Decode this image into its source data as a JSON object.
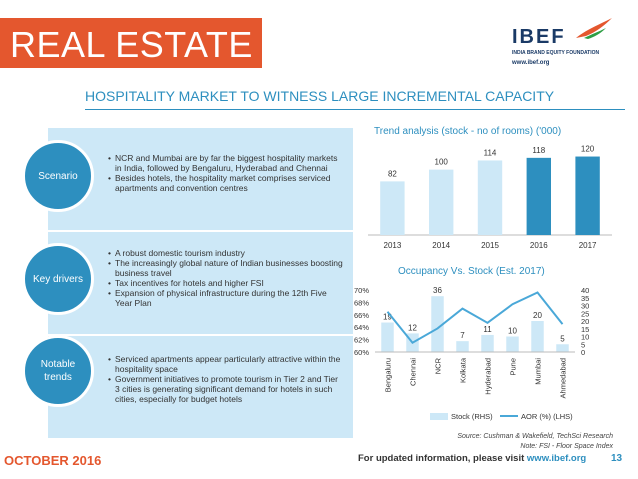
{
  "page": {
    "section_title": "REAL ESTATE",
    "headline": "HOSPITALITY MARKET TO WITNESS LARGE INCREMENTAL CAPACITY"
  },
  "logo": {
    "name": "IBEF",
    "subtitle": "INDIA BRAND EQUITY FOUNDATION",
    "url": "www.ibef.org"
  },
  "panels": [
    {
      "label": "Scenario",
      "bullets": [
        "NCR and Mumbai are by far the biggest hospitality markets in India, followed by Bengaluru, Hyderabad and Chennai",
        "Besides hotels, the hospitality market comprises serviced apartments and convention centres"
      ]
    },
    {
      "label": "Key drivers",
      "bullets": [
        "A robust domestic tourism industry",
        "The increasingly global nature of Indian businesses boosting business travel",
        "Tax incentives for hotels and higher FSI",
        "Expansion of physical infrastructure during the 12th Five Year Plan"
      ]
    },
    {
      "label": "Notable trends",
      "bullets": [
        "Serviced apartments appear particularly attractive within the hospitality space",
        "Government initiatives to promote tourism in Tier 2 and Tier 3 cities is generating significant demand for hotels in such cities, especially for budget hotels"
      ]
    }
  ],
  "chart_data": [
    {
      "type": "bar",
      "title": "Trend analysis (stock - no of rooms) ('000)",
      "categories": [
        "2013",
        "2014",
        "2015",
        "2016",
        "2017"
      ],
      "values": [
        82,
        100,
        114,
        118,
        120
      ],
      "bar_colors": [
        "#cde8f7",
        "#cde8f7",
        "#cde8f7",
        "#2d8fbf",
        "#2d8fbf"
      ],
      "ylim": [
        0,
        130
      ],
      "xlabel": "",
      "ylabel": ""
    },
    {
      "type": "bar+line",
      "title": "Occupancy Vs. Stock (Est. 2017)",
      "categories": [
        "Bengaluru",
        "Chennai",
        "NCR",
        "Kolkata",
        "Hyderabad",
        "Pune",
        "Mumbai",
        "Ahmedabad"
      ],
      "series": [
        {
          "name": "Stock (RHS)",
          "type": "bar",
          "axis": "right",
          "color": "#cde8f7",
          "values": [
            19,
            12,
            36,
            7,
            11,
            10,
            20,
            5
          ]
        },
        {
          "name": "AOR (%) (LHS)",
          "type": "line",
          "axis": "left",
          "color": "#4aa8d8",
          "values": [
            66.5,
            61.5,
            63.8,
            67,
            64.7,
            67.7,
            69.6,
            64.5
          ]
        }
      ],
      "left_axis": {
        "ylim": [
          60,
          70
        ],
        "ticks": [
          "60%",
          "62%",
          "64%",
          "66%",
          "68%",
          "70%"
        ]
      },
      "right_axis": {
        "ylim": [
          0,
          40
        ],
        "ticks": [
          "0",
          "5",
          "10",
          "15",
          "20",
          "25",
          "30",
          "35",
          "40"
        ]
      },
      "legend": [
        "Stock (RHS)",
        "AOR (%) (LHS)"
      ]
    }
  ],
  "source": "Source: Cushman & Wakefield, TechSci Research",
  "note": "Note: FSI - Floor Space Index",
  "footer": {
    "date": "OCTOBER 2016",
    "text": "For updated information, please visit ",
    "url": "www.ibef.org",
    "page_number": "13"
  }
}
